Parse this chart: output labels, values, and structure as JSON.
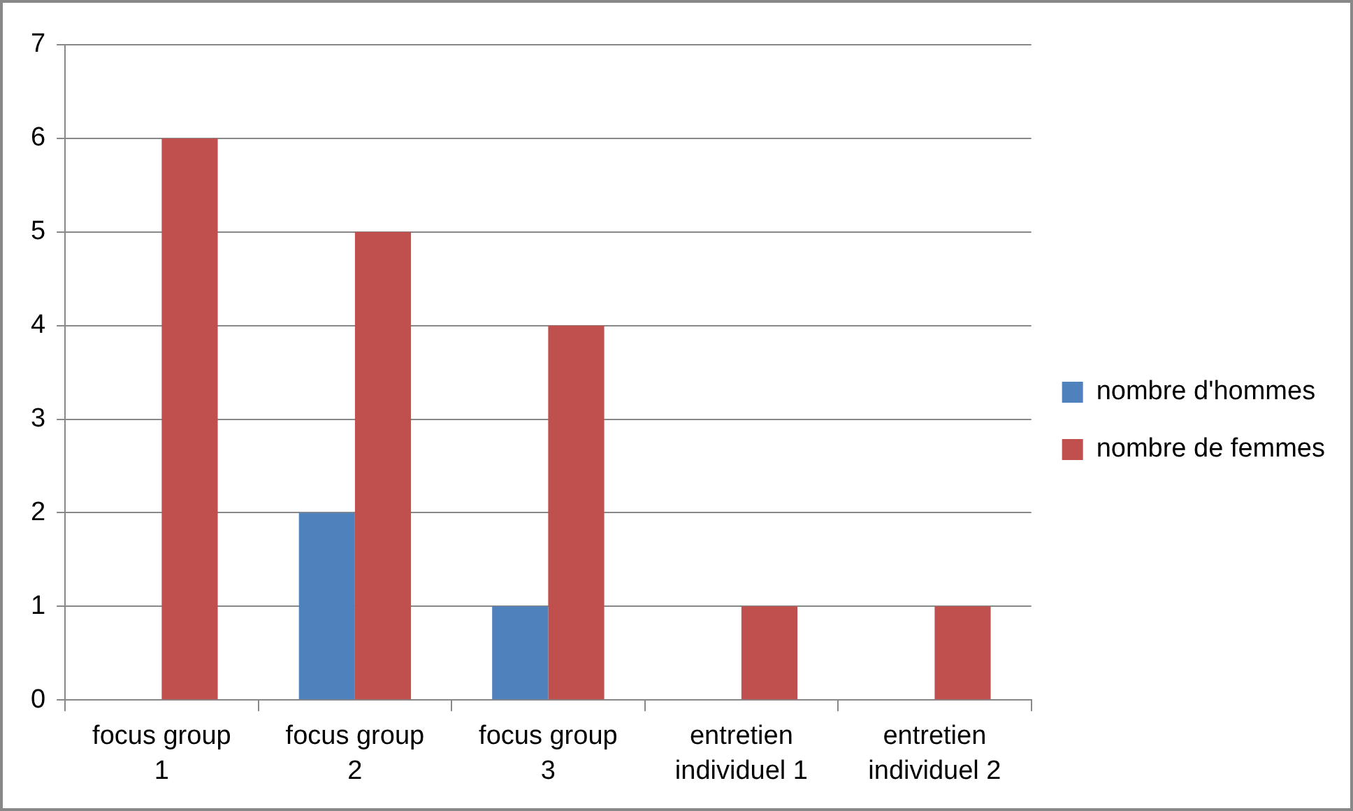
{
  "chart_data": {
    "type": "bar",
    "categories": [
      "focus group 1",
      "focus group 2",
      "focus group 3",
      "entretien individuel 1",
      "entretien individuel 2"
    ],
    "series": [
      {
        "name": "nombre d'hommes",
        "color": "#4f81bd",
        "values": [
          0,
          2,
          1,
          0,
          0
        ]
      },
      {
        "name": "nombre de femmes",
        "color": "#c0504d",
        "values": [
          6,
          5,
          4,
          1,
          1
        ]
      }
    ],
    "ylim": [
      0,
      7
    ],
    "yticks": [
      0,
      1,
      2,
      3,
      4,
      5,
      6,
      7
    ],
    "grid": "y",
    "legend": "right"
  }
}
